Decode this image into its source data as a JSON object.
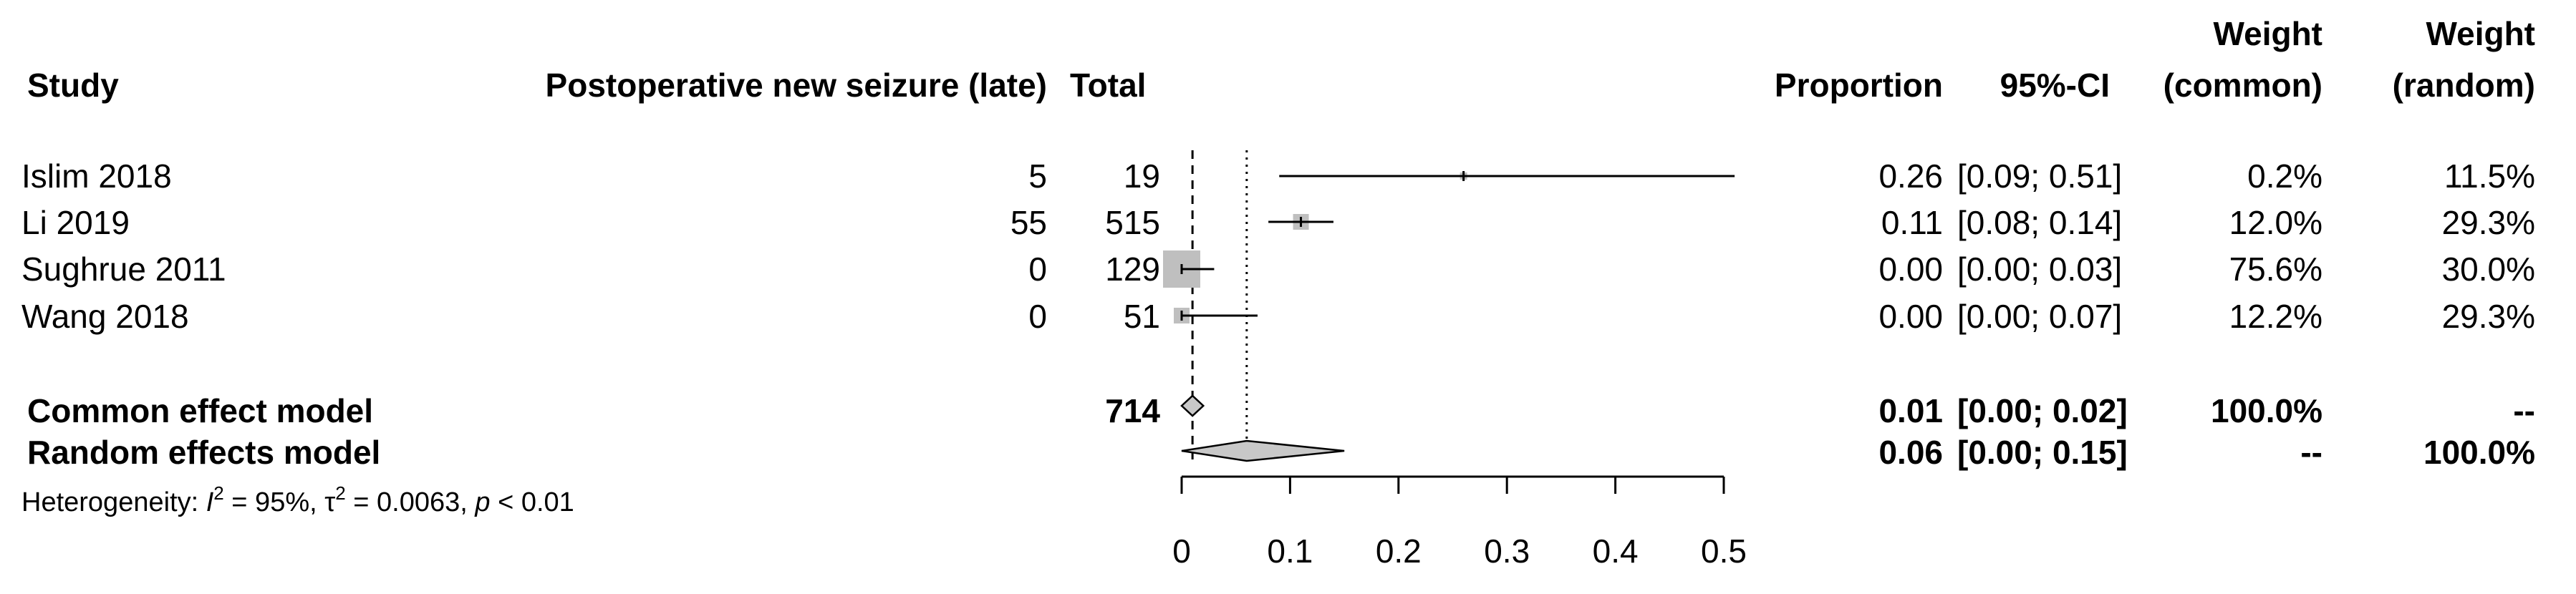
{
  "headers": {
    "study": "Study",
    "events": "Postoperative new seizure (late)",
    "total": "Total",
    "proportion": "Proportion",
    "ci": "95%-CI",
    "weight_common_1": "Weight",
    "weight_common_2": "(common)",
    "weight_random_1": "Weight",
    "weight_random_2": "(random)"
  },
  "studies": [
    {
      "name": "Islim 2018",
      "events": "5",
      "total": "19",
      "prop_text": "0.26",
      "ci_text": "[0.09; 0.51]",
      "w_common": "0.2%",
      "w_random": "11.5%",
      "prop": 0.26,
      "lo": 0.09,
      "hi": 0.51
    },
    {
      "name": "Li 2019",
      "events": "55",
      "total": "515",
      "prop_text": "0.11",
      "ci_text": "[0.08; 0.14]",
      "w_common": "12.0%",
      "w_random": "29.3%",
      "prop": 0.11,
      "lo": 0.08,
      "hi": 0.14
    },
    {
      "name": "Sughrue 2011",
      "events": "0",
      "total": "129",
      "prop_text": "0.00",
      "ci_text": "[0.00; 0.03]",
      "w_common": "75.6%",
      "w_random": "30.0%",
      "prop": 0.0,
      "lo": 0.0,
      "hi": 0.03
    },
    {
      "name": "Wang 2018",
      "events": "0",
      "total": "51",
      "prop_text": "0.00",
      "ci_text": "[0.00; 0.07]",
      "w_common": "12.2%",
      "w_random": "29.3%",
      "prop": 0.0,
      "lo": 0.0,
      "hi": 0.07
    }
  ],
  "models": {
    "common": {
      "label": "Common effect model",
      "total": "714",
      "prop_text": "0.01",
      "ci_text": "[0.00; 0.02]",
      "w_common": "100.0%",
      "w_random": "--",
      "prop": 0.01,
      "lo": 0.0,
      "hi": 0.02
    },
    "random": {
      "label": "Random effects model",
      "prop_text": "0.06",
      "ci_text": "[0.00; 0.15]",
      "w_common": "--",
      "w_random": "100.0%",
      "prop": 0.06,
      "lo": 0.0,
      "hi": 0.15
    }
  },
  "heterogeneity": {
    "prefix": "Heterogeneity: ",
    "i_symbol": "I",
    "i_sup": "2",
    "i_value": " = 95%, ",
    "tau_symbol": "τ",
    "tau_sup": "2",
    "tau_value": " = 0.0063, ",
    "p_symbol": "p",
    "p_value": " < 0.01"
  },
  "chart_data": {
    "type": "forest",
    "xlim": [
      0,
      0.5
    ],
    "x_ticks": [
      0,
      0.1,
      0.2,
      0.3,
      0.4,
      0.5
    ],
    "x_tick_labels": [
      "0",
      "0.1",
      "0.2",
      "0.3",
      "0.4",
      "0.5"
    ],
    "common_estimate": 0.01,
    "random_estimate": 0.06,
    "colors": {
      "ink": "#000000",
      "box": "#bfbfbf",
      "diamond": "#c8c8c8"
    }
  }
}
